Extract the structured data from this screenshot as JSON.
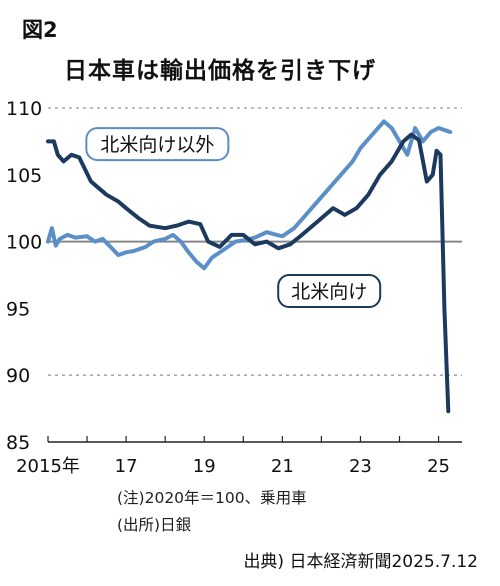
{
  "header": {
    "figure_label": "図2",
    "title": "日本車は輸出価格を引き下げ"
  },
  "notes": {
    "note": "(注)2020年＝100、乗用車",
    "source": "(出所)日銀"
  },
  "credit": "出典) 日本経済新聞2025.7.12",
  "colors": {
    "north_america": "#1c3a5e",
    "excl_north_america": "#5b8fc7",
    "baseline": "#888888",
    "grid": "#999999"
  },
  "chart_data": {
    "type": "line",
    "ylim": [
      85,
      110
    ],
    "xlim": [
      2015,
      2025.6
    ],
    "y_ticks": [
      85,
      90,
      95,
      100,
      105,
      110
    ],
    "dashed_gridlines": [
      90,
      110
    ],
    "solid_reference_line": 100,
    "x_tick_labels": [
      {
        "x": 2015,
        "label": "2015年"
      },
      {
        "x": 2017,
        "label": "17"
      },
      {
        "x": 2019,
        "label": "19"
      },
      {
        "x": 2021,
        "label": "21"
      },
      {
        "x": 2023,
        "label": "23"
      },
      {
        "x": 2025,
        "label": "25"
      }
    ],
    "series": [
      {
        "name": "北米向け以外",
        "color": "#5b8fc7",
        "x": [
          2015.0,
          2015.1,
          2015.2,
          2015.3,
          2015.5,
          2015.7,
          2016.0,
          2016.2,
          2016.4,
          2016.6,
          2016.8,
          2017.0,
          2017.2,
          2017.5,
          2017.7,
          2018.0,
          2018.2,
          2018.4,
          2018.6,
          2018.8,
          2019.0,
          2019.2,
          2019.5,
          2019.8,
          2020.0,
          2020.3,
          2020.6,
          2021.0,
          2021.3,
          2021.6,
          2021.9,
          2022.2,
          2022.5,
          2022.8,
          2023.0,
          2023.3,
          2023.6,
          2023.8,
          2024.0,
          2024.2,
          2024.4,
          2024.6,
          2024.8,
          2025.0,
          2025.2,
          2025.3
        ],
        "values": [
          100.0,
          101.0,
          99.7,
          100.2,
          100.5,
          100.3,
          100.4,
          100.0,
          100.2,
          99.6,
          99.0,
          99.2,
          99.3,
          99.6,
          100.0,
          100.2,
          100.5,
          100.0,
          99.2,
          98.5,
          98.0,
          98.8,
          99.4,
          100.0,
          100.1,
          100.3,
          100.7,
          100.4,
          101.0,
          102.0,
          103.0,
          104.0,
          105.0,
          106.0,
          107.0,
          108.0,
          109.0,
          108.5,
          107.5,
          106.5,
          108.5,
          107.5,
          108.2,
          108.5,
          108.3,
          108.2
        ]
      },
      {
        "name": "北米向け",
        "color": "#1c3a5e",
        "x": [
          2015.0,
          2015.15,
          2015.25,
          2015.4,
          2015.6,
          2015.8,
          2016.1,
          2016.3,
          2016.5,
          2016.8,
          2017.0,
          2017.3,
          2017.6,
          2018.0,
          2018.3,
          2018.6,
          2018.9,
          2019.1,
          2019.4,
          2019.7,
          2020.0,
          2020.3,
          2020.6,
          2020.9,
          2021.2,
          2021.5,
          2021.9,
          2022.3,
          2022.6,
          2022.9,
          2023.2,
          2023.5,
          2023.8,
          2024.1,
          2024.3,
          2024.5,
          2024.7,
          2024.85,
          2024.95,
          2025.05,
          2025.15,
          2025.25
        ],
        "values": [
          107.5,
          107.5,
          106.5,
          106.0,
          106.5,
          106.3,
          104.5,
          104.0,
          103.5,
          103.0,
          102.5,
          101.8,
          101.2,
          101.0,
          101.2,
          101.5,
          101.3,
          100.0,
          99.6,
          100.5,
          100.5,
          99.8,
          100.0,
          99.5,
          99.8,
          100.5,
          101.5,
          102.5,
          102.0,
          102.5,
          103.5,
          105.0,
          106.0,
          107.5,
          108.0,
          107.6,
          104.5,
          105.0,
          106.8,
          106.5,
          95.0,
          87.3
        ]
      }
    ],
    "annotations": [
      {
        "text": "北米向け以外",
        "series": "北米向け以外",
        "at": {
          "x": 2017.8,
          "y": 107.3
        }
      },
      {
        "text": "北米向け",
        "series": "北米向け",
        "at": {
          "x": 2022.2,
          "y": 96.3
        }
      }
    ]
  }
}
